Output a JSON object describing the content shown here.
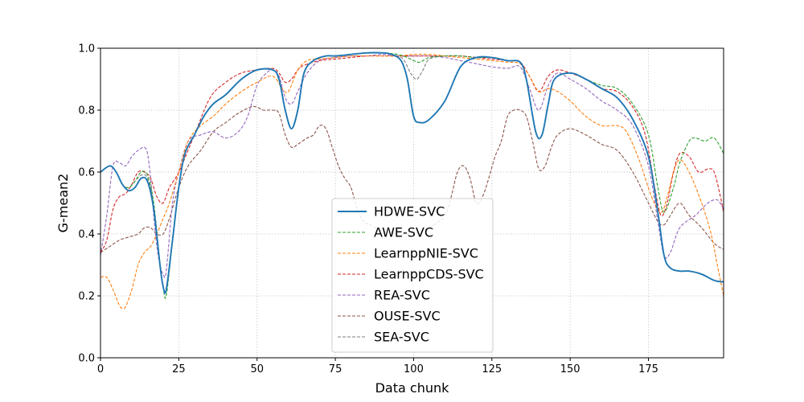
{
  "chart_data": {
    "type": "line",
    "xlabel": "Data chunk",
    "ylabel": "G-mean2",
    "xlim": [
      0,
      199
    ],
    "ylim": [
      0.0,
      1.0
    ],
    "xticks": [
      0,
      25,
      50,
      75,
      100,
      125,
      150,
      175
    ],
    "xtick_labels": [
      "0",
      "25",
      "50",
      "75",
      "100",
      "125",
      "150",
      "175"
    ],
    "yticks": [
      0.0,
      0.2,
      0.4,
      0.6,
      0.8,
      1.0
    ],
    "ytick_labels": [
      "0.0",
      "0.2",
      "0.4",
      "0.6",
      "0.8",
      "1.0"
    ],
    "grid": true,
    "legend_position": "lower-center",
    "series": [
      {
        "name": "HDWE-SVC",
        "color": "#1f77b4",
        "dashed": false,
        "x": [
          0,
          3,
          5,
          7,
          9,
          11,
          13,
          15,
          17,
          19,
          20,
          21,
          23,
          25,
          27,
          30,
          33,
          36,
          40,
          45,
          50,
          55,
          57,
          59,
          61,
          63,
          65,
          68,
          72,
          75,
          80,
          85,
          90,
          93,
          96,
          98,
          100,
          102,
          105,
          110,
          115,
          120,
          125,
          130,
          134,
          136,
          139,
          141,
          143,
          145,
          150,
          155,
          160,
          165,
          170,
          175,
          178,
          180,
          182,
          185,
          188,
          192,
          196,
          199
        ],
        "y": [
          0.6,
          0.62,
          0.6,
          0.56,
          0.54,
          0.55,
          0.58,
          0.57,
          0.48,
          0.3,
          0.23,
          0.22,
          0.38,
          0.55,
          0.66,
          0.72,
          0.78,
          0.82,
          0.85,
          0.9,
          0.93,
          0.93,
          0.9,
          0.8,
          0.74,
          0.8,
          0.92,
          0.96,
          0.975,
          0.975,
          0.98,
          0.985,
          0.985,
          0.98,
          0.96,
          0.9,
          0.78,
          0.76,
          0.77,
          0.83,
          0.94,
          0.97,
          0.97,
          0.96,
          0.955,
          0.9,
          0.73,
          0.72,
          0.82,
          0.9,
          0.92,
          0.9,
          0.87,
          0.84,
          0.77,
          0.65,
          0.47,
          0.33,
          0.29,
          0.28,
          0.28,
          0.27,
          0.25,
          0.245
        ]
      },
      {
        "name": "AWE-SVC",
        "color": "#2ca02c",
        "dashed": true,
        "x": [
          0,
          3,
          5,
          7,
          9,
          11,
          13,
          15,
          17,
          19,
          20,
          21,
          23,
          25,
          27,
          30,
          33,
          36,
          40,
          45,
          50,
          55,
          57,
          59,
          61,
          63,
          65,
          68,
          72,
          75,
          80,
          85,
          90,
          95,
          98,
          100,
          102,
          105,
          110,
          115,
          120,
          125,
          130,
          134,
          136,
          139,
          141,
          143,
          145,
          150,
          155,
          160,
          165,
          170,
          175,
          178,
          180,
          183,
          185,
          188,
          190,
          193,
          196,
          199
        ],
        "y": [
          0.6,
          0.62,
          0.6,
          0.56,
          0.55,
          0.57,
          0.6,
          0.59,
          0.5,
          0.3,
          0.23,
          0.2,
          0.38,
          0.55,
          0.66,
          0.72,
          0.78,
          0.82,
          0.85,
          0.9,
          0.93,
          0.93,
          0.9,
          0.8,
          0.74,
          0.8,
          0.92,
          0.96,
          0.975,
          0.975,
          0.98,
          0.985,
          0.985,
          0.98,
          0.97,
          0.96,
          0.955,
          0.97,
          0.975,
          0.975,
          0.97,
          0.97,
          0.96,
          0.955,
          0.9,
          0.73,
          0.72,
          0.82,
          0.9,
          0.92,
          0.9,
          0.88,
          0.87,
          0.82,
          0.72,
          0.55,
          0.47,
          0.55,
          0.63,
          0.7,
          0.71,
          0.7,
          0.71,
          0.66
        ]
      },
      {
        "name": "LearnppNIE-SVC",
        "color": "#ff7f0e",
        "dashed": true,
        "x": [
          0,
          2,
          4,
          6,
          7,
          8,
          10,
          12,
          14,
          16,
          18,
          20,
          22,
          25,
          28,
          32,
          36,
          40,
          45,
          50,
          55,
          58,
          60,
          63,
          66,
          70,
          75,
          80,
          85,
          90,
          95,
          100,
          105,
          110,
          115,
          120,
          125,
          130,
          134,
          137,
          140,
          143,
          146,
          150,
          155,
          160,
          165,
          168,
          172,
          176,
          179,
          181,
          183,
          185,
          188,
          192,
          195,
          197,
          199
        ],
        "y": [
          0.26,
          0.26,
          0.22,
          0.17,
          0.16,
          0.165,
          0.22,
          0.3,
          0.34,
          0.36,
          0.4,
          0.45,
          0.5,
          0.6,
          0.7,
          0.75,
          0.78,
          0.82,
          0.86,
          0.89,
          0.91,
          0.87,
          0.86,
          0.93,
          0.96,
          0.965,
          0.97,
          0.975,
          0.975,
          0.975,
          0.975,
          0.98,
          0.98,
          0.975,
          0.97,
          0.965,
          0.96,
          0.955,
          0.95,
          0.91,
          0.86,
          0.87,
          0.86,
          0.83,
          0.78,
          0.75,
          0.75,
          0.73,
          0.64,
          0.52,
          0.47,
          0.52,
          0.6,
          0.64,
          0.6,
          0.5,
          0.4,
          0.3,
          0.2
        ]
      },
      {
        "name": "LearnppCDS-SVC",
        "color": "#d62728",
        "dashed": true,
        "x": [
          0,
          2,
          4,
          6,
          8,
          10,
          12,
          14,
          16,
          18,
          20,
          22,
          25,
          30,
          35,
          40,
          45,
          50,
          55,
          57,
          59,
          61,
          63,
          65,
          70,
          75,
          80,
          85,
          90,
          95,
          100,
          105,
          110,
          115,
          120,
          125,
          130,
          134,
          137,
          140,
          143,
          146,
          150,
          155,
          160,
          165,
          170,
          174,
          177,
          179,
          181,
          183,
          185,
          188,
          191,
          194,
          196,
          198,
          199
        ],
        "y": [
          0.34,
          0.38,
          0.48,
          0.52,
          0.53,
          0.56,
          0.6,
          0.6,
          0.58,
          0.52,
          0.5,
          0.55,
          0.6,
          0.72,
          0.84,
          0.89,
          0.92,
          0.93,
          0.935,
          0.92,
          0.89,
          0.9,
          0.93,
          0.945,
          0.96,
          0.965,
          0.97,
          0.975,
          0.975,
          0.975,
          0.975,
          0.975,
          0.975,
          0.975,
          0.97,
          0.965,
          0.96,
          0.955,
          0.91,
          0.86,
          0.91,
          0.93,
          0.92,
          0.9,
          0.87,
          0.86,
          0.81,
          0.72,
          0.55,
          0.46,
          0.5,
          0.6,
          0.66,
          0.65,
          0.6,
          0.61,
          0.6,
          0.52,
          0.47
        ]
      },
      {
        "name": "REA-SVC",
        "color": "#9467bd",
        "dashed": true,
        "x": [
          0,
          2,
          4,
          6,
          8,
          10,
          12,
          14,
          15,
          16,
          17,
          18,
          19,
          20,
          21,
          23,
          25,
          28,
          32,
          36,
          40,
          44,
          47,
          50,
          53,
          55,
          57,
          59,
          61,
          63,
          66,
          70,
          75,
          80,
          85,
          90,
          95,
          100,
          105,
          110,
          115,
          120,
          125,
          130,
          134,
          137,
          140,
          143,
          146,
          150,
          155,
          160,
          165,
          170,
          175,
          178,
          180,
          182,
          185,
          190,
          194,
          197,
          199
        ],
        "y": [
          0.33,
          0.46,
          0.62,
          0.63,
          0.62,
          0.65,
          0.67,
          0.68,
          0.66,
          0.58,
          0.46,
          0.36,
          0.3,
          0.27,
          0.28,
          0.5,
          0.6,
          0.7,
          0.72,
          0.73,
          0.71,
          0.73,
          0.78,
          0.88,
          0.92,
          0.93,
          0.91,
          0.84,
          0.82,
          0.86,
          0.92,
          0.96,
          0.97,
          0.975,
          0.975,
          0.98,
          0.975,
          0.975,
          0.975,
          0.97,
          0.96,
          0.95,
          0.94,
          0.935,
          0.94,
          0.87,
          0.8,
          0.88,
          0.92,
          0.9,
          0.87,
          0.83,
          0.8,
          0.75,
          0.62,
          0.44,
          0.33,
          0.34,
          0.42,
          0.46,
          0.5,
          0.51,
          0.48
        ]
      },
      {
        "name": "OUSE-SVC",
        "color": "#8c564b",
        "dashed": true,
        "x": [
          0,
          3,
          6,
          9,
          12,
          14,
          16,
          18,
          20,
          22,
          25,
          28,
          32,
          36,
          40,
          44,
          48,
          50,
          52,
          55,
          57,
          59,
          61,
          63,
          66,
          68,
          70,
          72,
          74,
          76,
          78,
          80,
          82,
          84,
          86,
          90,
          95,
          100,
          105,
          110,
          112,
          114,
          116,
          118,
          120,
          122,
          124,
          126,
          128,
          130,
          132,
          134,
          136,
          138,
          140,
          142,
          144,
          146,
          150,
          155,
          160,
          165,
          170,
          175,
          178,
          180,
          182,
          185,
          188,
          192,
          196,
          199
        ],
        "y": [
          0.34,
          0.36,
          0.38,
          0.39,
          0.4,
          0.42,
          0.42,
          0.4,
          0.4,
          0.45,
          0.55,
          0.62,
          0.67,
          0.73,
          0.76,
          0.79,
          0.81,
          0.81,
          0.8,
          0.8,
          0.79,
          0.72,
          0.68,
          0.69,
          0.71,
          0.72,
          0.75,
          0.74,
          0.68,
          0.62,
          0.58,
          0.55,
          0.48,
          0.44,
          0.43,
          0.41,
          0.4,
          0.4,
          0.42,
          0.46,
          0.52,
          0.6,
          0.62,
          0.58,
          0.5,
          0.52,
          0.58,
          0.65,
          0.7,
          0.78,
          0.8,
          0.8,
          0.78,
          0.7,
          0.61,
          0.62,
          0.68,
          0.72,
          0.74,
          0.72,
          0.69,
          0.67,
          0.6,
          0.5,
          0.44,
          0.43,
          0.46,
          0.5,
          0.46,
          0.42,
          0.37,
          0.35
        ]
      },
      {
        "name": "SEA-SVC",
        "color": "#7f7f7f",
        "dashed": true,
        "x": [
          0,
          3,
          5,
          7,
          9,
          11,
          13,
          15,
          17,
          19,
          20,
          21,
          23,
          25,
          27,
          30,
          33,
          36,
          40,
          45,
          50,
          55,
          57,
          59,
          61,
          63,
          65,
          68,
          72,
          75,
          80,
          85,
          90,
          95,
          97,
          99,
          101,
          103,
          105,
          110,
          115,
          120,
          125,
          130,
          134,
          136,
          139,
          141,
          143,
          145,
          150,
          155,
          160,
          165,
          170,
          175,
          178,
          180,
          182,
          185,
          188,
          192,
          196,
          199
        ],
        "y": [
          0.6,
          0.62,
          0.6,
          0.56,
          0.55,
          0.57,
          0.59,
          0.58,
          0.49,
          0.3,
          0.23,
          0.22,
          0.38,
          0.55,
          0.66,
          0.72,
          0.78,
          0.82,
          0.85,
          0.9,
          0.93,
          0.93,
          0.9,
          0.8,
          0.74,
          0.8,
          0.92,
          0.96,
          0.975,
          0.975,
          0.98,
          0.985,
          0.985,
          0.975,
          0.96,
          0.92,
          0.9,
          0.93,
          0.965,
          0.975,
          0.975,
          0.97,
          0.97,
          0.96,
          0.955,
          0.9,
          0.73,
          0.72,
          0.82,
          0.9,
          0.92,
          0.9,
          0.87,
          0.84,
          0.77,
          0.65,
          0.47,
          0.33,
          0.29,
          0.28,
          0.28,
          0.27,
          0.25,
          0.245
        ]
      }
    ]
  }
}
